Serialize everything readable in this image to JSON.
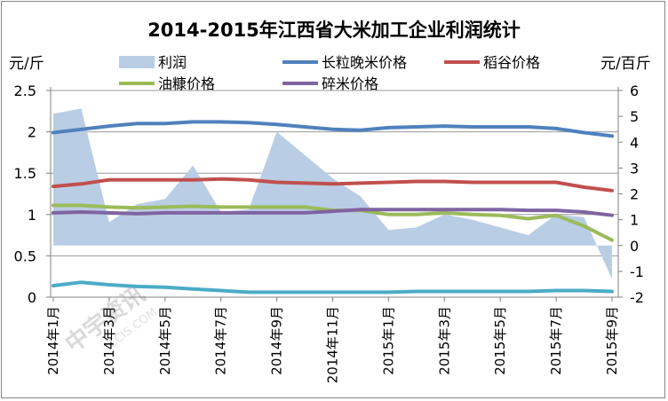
{
  "chart_data": {
    "type": "line",
    "title": "2014-2015年江西省大米加工企业利润统计",
    "left_unit": "元/斤",
    "right_unit": "元/百斤",
    "ylim_left": [
      0,
      2.5
    ],
    "yticks_left": [
      "0",
      "0.5",
      "1",
      "1.5",
      "2",
      "2.5"
    ],
    "ylim_right": [
      -2,
      6
    ],
    "yticks_right": [
      "-2",
      "-1",
      "0",
      "1",
      "2",
      "3",
      "4",
      "5",
      "6"
    ],
    "x_labels": [
      "2014年1月",
      "2014年3月",
      "2014年5月",
      "2014年7月",
      "2014年9月",
      "2014年11月",
      "2015年1月",
      "2015年3月",
      "2015年5月",
      "2015年7月",
      "2015年9月"
    ],
    "grid": true,
    "legend_position": "top",
    "series": [
      {
        "name": "利润",
        "axis": "right",
        "kind": "area",
        "color": "#b9cde5",
        "values": [
          5.1,
          5.3,
          0.9,
          1.6,
          1.8,
          3.1,
          1.3,
          1.4,
          4.4,
          3.5,
          2.6,
          1.9,
          0.6,
          0.7,
          1.2,
          1.0,
          0.7,
          0.4,
          1.2,
          1.1,
          -1.3
        ]
      },
      {
        "name": "长粒晚米价格",
        "axis": "left",
        "kind": "line",
        "color": "#4f81bd",
        "values": [
          1.99,
          2.03,
          2.07,
          2.1,
          2.1,
          2.12,
          2.12,
          2.11,
          2.09,
          2.06,
          2.03,
          2.02,
          2.05,
          2.06,
          2.07,
          2.06,
          2.06,
          2.06,
          2.04,
          1.99,
          1.95
        ]
      },
      {
        "name": "稻谷价格",
        "axis": "left",
        "kind": "line",
        "color": "#c0504d",
        "values": [
          1.34,
          1.37,
          1.42,
          1.42,
          1.42,
          1.42,
          1.43,
          1.42,
          1.39,
          1.38,
          1.37,
          1.38,
          1.39,
          1.4,
          1.4,
          1.39,
          1.39,
          1.39,
          1.39,
          1.33,
          1.29
        ]
      },
      {
        "name": "油糠价格",
        "axis": "left",
        "kind": "line",
        "color": "#9bbb59",
        "values": [
          1.11,
          1.11,
          1.09,
          1.08,
          1.09,
          1.1,
          1.09,
          1.09,
          1.09,
          1.09,
          1.05,
          1.05,
          1.0,
          1.0,
          1.02,
          1.0,
          0.99,
          0.95,
          0.99,
          0.86,
          0.69
        ]
      },
      {
        "name": "碎米价格",
        "axis": "left",
        "kind": "line",
        "color": "#8064a2",
        "values": [
          1.02,
          1.03,
          1.02,
          1.01,
          1.02,
          1.02,
          1.02,
          1.02,
          1.02,
          1.02,
          1.04,
          1.06,
          1.06,
          1.06,
          1.06,
          1.06,
          1.06,
          1.05,
          1.05,
          1.03,
          0.99
        ]
      },
      {
        "name": "",
        "axis": "left",
        "kind": "line",
        "color": "#4bacc6",
        "values": [
          0.14,
          0.18,
          0.15,
          0.13,
          0.12,
          0.1,
          0.08,
          0.06,
          0.06,
          0.06,
          0.06,
          0.06,
          0.06,
          0.07,
          0.07,
          0.07,
          0.07,
          0.07,
          0.08,
          0.08,
          0.07
        ]
      }
    ],
    "legend": [
      "利润",
      "长粒晚米价格",
      "稻谷价格",
      "油糠价格",
      "碎米价格"
    ]
  },
  "watermark": {
    "text": "中宇资讯",
    "sub": "CCIS.COM"
  }
}
